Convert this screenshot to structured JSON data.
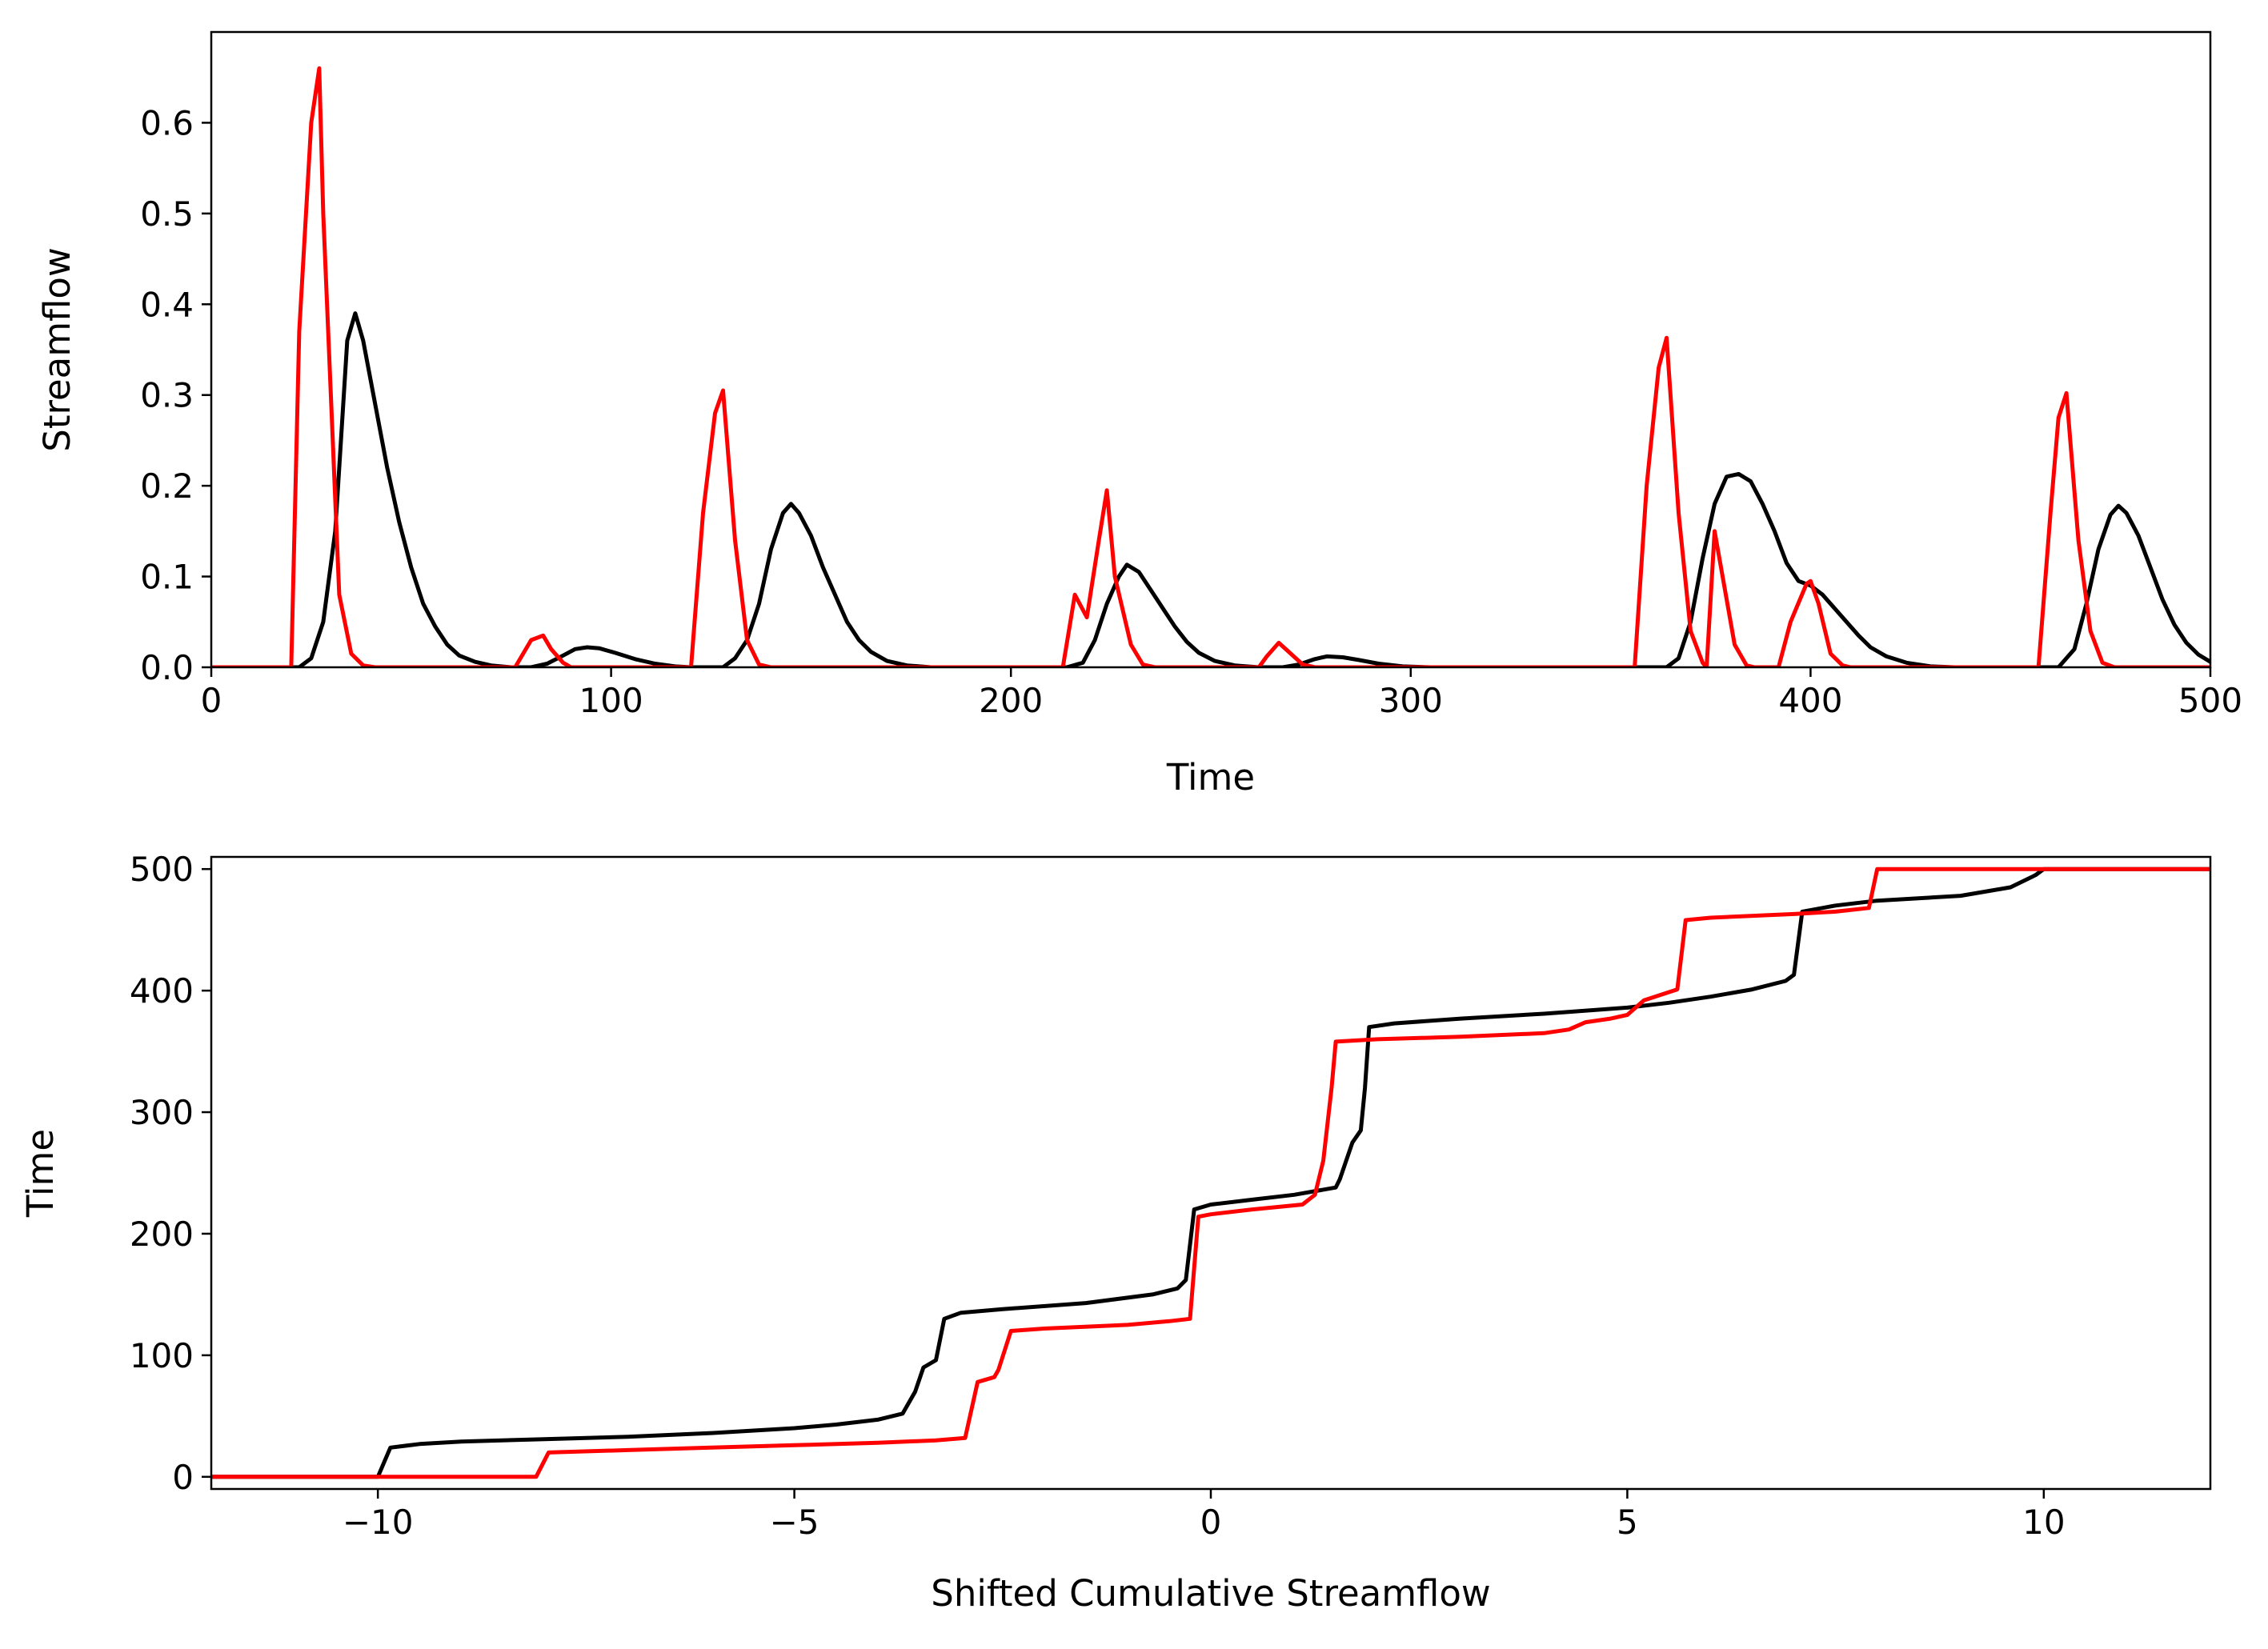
{
  "chart_data": [
    {
      "type": "line",
      "title": "",
      "xlabel": "Time",
      "ylabel": "Streamflow",
      "xlim": [
        0,
        500
      ],
      "ylim": [
        0,
        0.7
      ],
      "xticks": [
        0,
        100,
        200,
        300,
        400,
        500
      ],
      "xtick_labels": [
        "0",
        "100",
        "200",
        "300",
        "400",
        "500"
      ],
      "yticks": [
        0.0,
        0.1,
        0.2,
        0.3,
        0.4,
        0.5,
        0.6
      ],
      "ytick_labels": [
        "0.0",
        "0.1",
        "0.2",
        "0.3",
        "0.4",
        "0.5",
        "0.6"
      ],
      "grid": false,
      "series": [
        {
          "color": "#000000",
          "points": [
            [
              0,
              0
            ],
            [
              22,
              0
            ],
            [
              25,
              0.01
            ],
            [
              28,
              0.05
            ],
            [
              31,
              0.15
            ],
            [
              34,
              0.36
            ],
            [
              36,
              0.39
            ],
            [
              38,
              0.36
            ],
            [
              41,
              0.29
            ],
            [
              44,
              0.22
            ],
            [
              47,
              0.16
            ],
            [
              50,
              0.11
            ],
            [
              53,
              0.07
            ],
            [
              56,
              0.045
            ],
            [
              59,
              0.025
            ],
            [
              62,
              0.013
            ],
            [
              66,
              0.006
            ],
            [
              70,
              0.002
            ],
            [
              75,
              0
            ],
            [
              80,
              0
            ],
            [
              84,
              0.004
            ],
            [
              88,
              0.013
            ],
            [
              91,
              0.02
            ],
            [
              94,
              0.022
            ],
            [
              97,
              0.021
            ],
            [
              101,
              0.016
            ],
            [
              106,
              0.009
            ],
            [
              111,
              0.004
            ],
            [
              116,
              0.001
            ],
            [
              120,
              0
            ],
            [
              128,
              0
            ],
            [
              131,
              0.01
            ],
            [
              134,
              0.03
            ],
            [
              137,
              0.07
            ],
            [
              140,
              0.13
            ],
            [
              143,
              0.17
            ],
            [
              145,
              0.18
            ],
            [
              147,
              0.17
            ],
            [
              150,
              0.145
            ],
            [
              153,
              0.11
            ],
            [
              156,
              0.08
            ],
            [
              159,
              0.05
            ],
            [
              162,
              0.03
            ],
            [
              165,
              0.017
            ],
            [
              169,
              0.007
            ],
            [
              174,
              0.002
            ],
            [
              180,
              0
            ],
            [
              214,
              0
            ],
            [
              218,
              0.005
            ],
            [
              221,
              0.03
            ],
            [
              224,
              0.07
            ],
            [
              227,
              0.1
            ],
            [
              229,
              0.113
            ],
            [
              232,
              0.105
            ],
            [
              235,
              0.085
            ],
            [
              238,
              0.065
            ],
            [
              241,
              0.045
            ],
            [
              244,
              0.028
            ],
            [
              247,
              0.016
            ],
            [
              251,
              0.007
            ],
            [
              256,
              0.002
            ],
            [
              262,
              0
            ],
            [
              268,
              0
            ],
            [
              272,
              0.003
            ],
            [
              276,
              0.009
            ],
            [
              279,
              0.012
            ],
            [
              283,
              0.011
            ],
            [
              287,
              0.008
            ],
            [
              292,
              0.004
            ],
            [
              298,
              0.001
            ],
            [
              305,
              0
            ],
            [
              364,
              0
            ],
            [
              367,
              0.01
            ],
            [
              370,
              0.05
            ],
            [
              373,
              0.12
            ],
            [
              376,
              0.18
            ],
            [
              379,
              0.21
            ],
            [
              382,
              0.213
            ],
            [
              385,
              0.205
            ],
            [
              388,
              0.18
            ],
            [
              391,
              0.15
            ],
            [
              394,
              0.115
            ],
            [
              397,
              0.095
            ],
            [
              400,
              0.09
            ],
            [
              403,
              0.08
            ],
            [
              406,
              0.065
            ],
            [
              409,
              0.05
            ],
            [
              412,
              0.035
            ],
            [
              415,
              0.022
            ],
            [
              419,
              0.012
            ],
            [
              424,
              0.005
            ],
            [
              430,
              0.001
            ],
            [
              436,
              0
            ],
            [
              462,
              0
            ],
            [
              466,
              0.02
            ],
            [
              469,
              0.07
            ],
            [
              472,
              0.13
            ],
            [
              475,
              0.168
            ],
            [
              477,
              0.178
            ],
            [
              479,
              0.17
            ],
            [
              482,
              0.145
            ],
            [
              485,
              0.11
            ],
            [
              488,
              0.075
            ],
            [
              491,
              0.047
            ],
            [
              494,
              0.027
            ],
            [
              497,
              0.014
            ],
            [
              500,
              0.006
            ]
          ]
        },
        {
          "color": "#ff0000",
          "points": [
            [
              0,
              0
            ],
            [
              20,
              0
            ],
            [
              22,
              0.37
            ],
            [
              25,
              0.6
            ],
            [
              27,
              0.66
            ],
            [
              28,
              0.5
            ],
            [
              32,
              0.08
            ],
            [
              35,
              0.015
            ],
            [
              38,
              0.002
            ],
            [
              41,
              0
            ],
            [
              76,
              0
            ],
            [
              78,
              0.015
            ],
            [
              80,
              0.03
            ],
            [
              83,
              0.035
            ],
            [
              85,
              0.02
            ],
            [
              88,
              0.005
            ],
            [
              90,
              0
            ],
            [
              120,
              0
            ],
            [
              123,
              0.17
            ],
            [
              126,
              0.28
            ],
            [
              128,
              0.305
            ],
            [
              131,
              0.14
            ],
            [
              134,
              0.03
            ],
            [
              137,
              0.003
            ],
            [
              140,
              0
            ],
            [
              213,
              0
            ],
            [
              216,
              0.08
            ],
            [
              219,
              0.055
            ],
            [
              222,
              0.14
            ],
            [
              224,
              0.195
            ],
            [
              226,
              0.1
            ],
            [
              230,
              0.025
            ],
            [
              233,
              0.003
            ],
            [
              236,
              0
            ],
            [
              262,
              0
            ],
            [
              264,
              0.012
            ],
            [
              267,
              0.027
            ],
            [
              270,
              0.015
            ],
            [
              273,
              0.003
            ],
            [
              276,
              0
            ],
            [
              356,
              0
            ],
            [
              359,
              0.2
            ],
            [
              362,
              0.33
            ],
            [
              364,
              0.363
            ],
            [
              367,
              0.17
            ],
            [
              370,
              0.04
            ],
            [
              373,
              0.005
            ],
            [
              374,
              0
            ],
            [
              376,
              0.15
            ],
            [
              378,
              0.1
            ],
            [
              381,
              0.025
            ],
            [
              384,
              0.002
            ],
            [
              386,
              0
            ],
            [
              392,
              0
            ],
            [
              395,
              0.05
            ],
            [
              399,
              0.092
            ],
            [
              400,
              0.095
            ],
            [
              402,
              0.07
            ],
            [
              405,
              0.015
            ],
            [
              408,
              0.002
            ],
            [
              410,
              0
            ],
            [
              457,
              0
            ],
            [
              460,
              0.17
            ],
            [
              462,
              0.275
            ],
            [
              464,
              0.302
            ],
            [
              467,
              0.14
            ],
            [
              470,
              0.04
            ],
            [
              473,
              0.005
            ],
            [
              476,
              0
            ],
            [
              500,
              0
            ]
          ]
        }
      ]
    },
    {
      "type": "line",
      "title": "",
      "xlabel": "Shifted Cumulative Streamflow",
      "ylabel": "Time",
      "xlim": [
        -12,
        12
      ],
      "ylim": [
        -10,
        510
      ],
      "xticks": [
        -10,
        -5,
        0,
        5,
        10
      ],
      "xtick_labels": [
        "−10",
        "−5",
        "0",
        "5",
        "10"
      ],
      "yticks": [
        0,
        100,
        200,
        300,
        400,
        500
      ],
      "ytick_labels": [
        "0",
        "100",
        "200",
        "300",
        "400",
        "500"
      ],
      "grid": false,
      "series": [
        {
          "color": "#000000",
          "points": [
            [
              -12,
              0
            ],
            [
              -10,
              0
            ],
            [
              -9.85,
              24
            ],
            [
              -9.5,
              27
            ],
            [
              -9,
              29
            ],
            [
              -8,
              31
            ],
            [
              -7,
              33
            ],
            [
              -6,
              36
            ],
            [
              -5,
              40
            ],
            [
              -4.5,
              43
            ],
            [
              -4,
              47
            ],
            [
              -3.7,
              52
            ],
            [
              -3.55,
              70
            ],
            [
              -3.45,
              90
            ],
            [
              -3.3,
              96
            ],
            [
              -3.2,
              130
            ],
            [
              -3.0,
              135
            ],
            [
              -2.5,
              138
            ],
            [
              -1.5,
              143
            ],
            [
              -0.7,
              150
            ],
            [
              -0.4,
              155
            ],
            [
              -0.3,
              162
            ],
            [
              -0.2,
              220
            ],
            [
              0,
              224
            ],
            [
              0.5,
              228
            ],
            [
              1.0,
              232
            ],
            [
              1.5,
              238
            ],
            [
              1.55,
              245
            ],
            [
              1.7,
              275
            ],
            [
              1.8,
              285
            ],
            [
              1.85,
              320
            ],
            [
              1.9,
              370
            ],
            [
              2.2,
              373
            ],
            [
              3,
              377
            ],
            [
              4,
              381
            ],
            [
              5,
              386
            ],
            [
              5.5,
              390
            ],
            [
              6,
              395
            ],
            [
              6.5,
              401
            ],
            [
              6.9,
              408
            ],
            [
              7.0,
              413
            ],
            [
              7.1,
              465
            ],
            [
              7.5,
              470
            ],
            [
              8,
              474
            ],
            [
              9,
              478
            ],
            [
              9.6,
              485
            ],
            [
              9.9,
              495
            ],
            [
              10,
              500
            ],
            [
              12,
              500
            ]
          ]
        },
        {
          "color": "#ff0000",
          "points": [
            [
              -12,
              0
            ],
            [
              -8.1,
              0
            ],
            [
              -7.95,
              20
            ],
            [
              -7,
              22
            ],
            [
              -6,
              24
            ],
            [
              -5,
              26
            ],
            [
              -4,
              28
            ],
            [
              -3.3,
              30
            ],
            [
              -2.95,
              32
            ],
            [
              -2.8,
              78
            ],
            [
              -2.6,
              82
            ],
            [
              -2.55,
              88
            ],
            [
              -2.4,
              120
            ],
            [
              -2,
              122
            ],
            [
              -1,
              125
            ],
            [
              -0.5,
              128
            ],
            [
              -0.25,
              130
            ],
            [
              -0.15,
              214
            ],
            [
              0,
              216
            ],
            [
              0.5,
              220
            ],
            [
              1.1,
              224
            ],
            [
              1.25,
              232
            ],
            [
              1.35,
              260
            ],
            [
              1.45,
              320
            ],
            [
              1.5,
              358
            ],
            [
              2,
              360
            ],
            [
              3,
              362
            ],
            [
              4,
              365
            ],
            [
              4.3,
              368
            ],
            [
              4.5,
              374
            ],
            [
              4.8,
              377
            ],
            [
              5,
              380
            ],
            [
              5.2,
              392
            ],
            [
              5.6,
              401
            ],
            [
              5.7,
              458
            ],
            [
              6,
              460
            ],
            [
              7,
              463
            ],
            [
              7.5,
              465
            ],
            [
              7.9,
              468
            ],
            [
              8.0,
              500
            ],
            [
              12,
              500
            ]
          ]
        }
      ]
    }
  ]
}
